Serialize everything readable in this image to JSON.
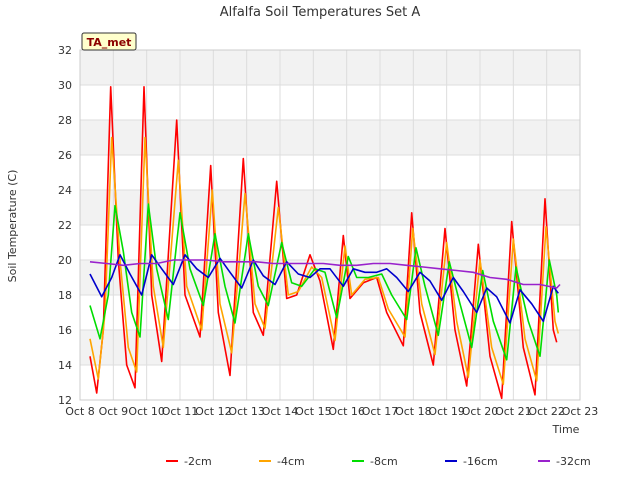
{
  "chart_data": {
    "type": "line",
    "title": "Alfalfa Soil Temperatures Set A",
    "xlabel": "Time",
    "ylabel": "Soil Temperature (C)",
    "badge": "TA_met",
    "ylim": [
      12,
      32
    ],
    "yticks": [
      12,
      14,
      16,
      18,
      20,
      22,
      24,
      26,
      28,
      30,
      32
    ],
    "xlim": [
      8,
      23
    ],
    "xticks": [
      {
        "day": 8,
        "label": "Oct 8"
      },
      {
        "day": 9,
        "label": "Oct 9"
      },
      {
        "day": 10,
        "label": "Oct 10"
      },
      {
        "day": 11,
        "label": "Oct 11"
      },
      {
        "day": 12,
        "label": "Oct 12"
      },
      {
        "day": 13,
        "label": "Oct 13"
      },
      {
        "day": 14,
        "label": "Oct 14"
      },
      {
        "day": 15,
        "label": "Oct 15"
      },
      {
        "day": 16,
        "label": "Oct 16"
      },
      {
        "day": 17,
        "label": "Oct 17"
      },
      {
        "day": 18,
        "label": "Oct 18"
      },
      {
        "day": 19,
        "label": "Oct 19"
      },
      {
        "day": 20,
        "label": "Oct 20"
      },
      {
        "day": 21,
        "label": "Oct 21"
      },
      {
        "day": 22,
        "label": "Oct 22"
      },
      {
        "day": 23,
        "label": "Oct 23"
      }
    ],
    "grid": true,
    "legend_position": "bottom",
    "series": [
      {
        "name": "-2cm",
        "color": "#ff0000",
        "points": [
          [
            8.3,
            14.5
          ],
          [
            8.5,
            12.4
          ],
          [
            8.7,
            16
          ],
          [
            8.92,
            29.9
          ],
          [
            9.15,
            20
          ],
          [
            9.4,
            14
          ],
          [
            9.65,
            12.7
          ],
          [
            9.92,
            29.9
          ],
          [
            10.15,
            18
          ],
          [
            10.45,
            14.2
          ],
          [
            10.9,
            28
          ],
          [
            11.15,
            18
          ],
          [
            11.6,
            15.6
          ],
          [
            11.92,
            25.4
          ],
          [
            12.15,
            17
          ],
          [
            12.5,
            13.4
          ],
          [
            12.9,
            25.8
          ],
          [
            13.2,
            17
          ],
          [
            13.5,
            15.7
          ],
          [
            13.9,
            24.5
          ],
          [
            14.2,
            17.8
          ],
          [
            14.5,
            18
          ],
          [
            14.9,
            20.3
          ],
          [
            15.2,
            18.8
          ],
          [
            15.6,
            14.9
          ],
          [
            15.9,
            21.4
          ],
          [
            16.1,
            17.8
          ],
          [
            16.5,
            18.7
          ],
          [
            16.9,
            19
          ],
          [
            17.2,
            17
          ],
          [
            17.7,
            15.1
          ],
          [
            17.95,
            22.7
          ],
          [
            18.2,
            17
          ],
          [
            18.6,
            14
          ],
          [
            18.95,
            21.8
          ],
          [
            19.25,
            16
          ],
          [
            19.6,
            12.8
          ],
          [
            19.95,
            20.9
          ],
          [
            20.3,
            14.5
          ],
          [
            20.65,
            12.1
          ],
          [
            20.95,
            22.2
          ],
          [
            21.3,
            15
          ],
          [
            21.65,
            12.3
          ],
          [
            21.95,
            23.5
          ],
          [
            22.2,
            16
          ],
          [
            22.3,
            15.3
          ]
        ]
      },
      {
        "name": "-4cm",
        "color": "#ffa500",
        "points": [
          [
            8.3,
            15.5
          ],
          [
            8.55,
            13.2
          ],
          [
            8.75,
            17
          ],
          [
            8.95,
            27
          ],
          [
            9.2,
            20
          ],
          [
            9.45,
            15
          ],
          [
            9.7,
            13.6
          ],
          [
            9.95,
            27
          ],
          [
            10.2,
            18.5
          ],
          [
            10.5,
            15
          ],
          [
            10.95,
            25.7
          ],
          [
            11.2,
            18.5
          ],
          [
            11.65,
            16
          ],
          [
            11.97,
            24
          ],
          [
            12.2,
            17.5
          ],
          [
            12.55,
            14.7
          ],
          [
            12.95,
            23.8
          ],
          [
            13.25,
            17.5
          ],
          [
            13.55,
            16.1
          ],
          [
            13.95,
            23
          ],
          [
            14.25,
            18
          ],
          [
            14.55,
            18.2
          ],
          [
            14.95,
            19.6
          ],
          [
            15.25,
            19
          ],
          [
            15.65,
            15.4
          ],
          [
            15.95,
            20.8
          ],
          [
            16.15,
            18
          ],
          [
            16.55,
            18.9
          ],
          [
            16.95,
            19
          ],
          [
            17.25,
            17.2
          ],
          [
            17.75,
            15.6
          ],
          [
            17.98,
            21.8
          ],
          [
            18.25,
            17.5
          ],
          [
            18.65,
            14.6
          ],
          [
            19.0,
            21
          ],
          [
            19.3,
            16.5
          ],
          [
            19.65,
            13.3
          ],
          [
            20.0,
            20
          ],
          [
            20.35,
            15
          ],
          [
            20.7,
            12.9
          ],
          [
            21.0,
            21.2
          ],
          [
            21.35,
            15.5
          ],
          [
            21.7,
            13.1
          ],
          [
            21.98,
            21.9
          ],
          [
            22.25,
            16.5
          ],
          [
            22.35,
            15.8
          ]
        ]
      },
      {
        "name": "-8cm",
        "color": "#00dd00",
        "points": [
          [
            8.3,
            17.4
          ],
          [
            8.6,
            15.5
          ],
          [
            8.85,
            18
          ],
          [
            9.05,
            23.1
          ],
          [
            9.3,
            20.5
          ],
          [
            9.55,
            17
          ],
          [
            9.8,
            15.6
          ],
          [
            10.05,
            23.2
          ],
          [
            10.3,
            19.5
          ],
          [
            10.65,
            16.6
          ],
          [
            11.0,
            22.7
          ],
          [
            11.3,
            19.5
          ],
          [
            11.7,
            17.4
          ],
          [
            12.05,
            21.5
          ],
          [
            12.35,
            18.5
          ],
          [
            12.65,
            16.4
          ],
          [
            13.05,
            21.5
          ],
          [
            13.35,
            18.5
          ],
          [
            13.65,
            17.4
          ],
          [
            14.05,
            21
          ],
          [
            14.35,
            18.7
          ],
          [
            14.65,
            18.5
          ],
          [
            15.05,
            19.5
          ],
          [
            15.35,
            19.3
          ],
          [
            15.7,
            16.7
          ],
          [
            16.05,
            20.2
          ],
          [
            16.3,
            19
          ],
          [
            16.65,
            19
          ],
          [
            17.05,
            19.2
          ],
          [
            17.35,
            18
          ],
          [
            17.8,
            16.6
          ],
          [
            18.08,
            20.7
          ],
          [
            18.35,
            18.5
          ],
          [
            18.75,
            15.7
          ],
          [
            19.08,
            19.9
          ],
          [
            19.4,
            17.5
          ],
          [
            19.75,
            15
          ],
          [
            20.08,
            19.4
          ],
          [
            20.4,
            16.5
          ],
          [
            20.8,
            14.3
          ],
          [
            21.08,
            19.6
          ],
          [
            21.45,
            16.5
          ],
          [
            21.8,
            14.5
          ],
          [
            22.08,
            20
          ],
          [
            22.3,
            18
          ],
          [
            22.35,
            17
          ]
        ]
      },
      {
        "name": "-16cm",
        "color": "#0000cc",
        "points": [
          [
            8.3,
            19.2
          ],
          [
            8.65,
            17.9
          ],
          [
            8.95,
            19
          ],
          [
            9.2,
            20.3
          ],
          [
            9.5,
            19.2
          ],
          [
            9.85,
            18
          ],
          [
            10.15,
            20.3
          ],
          [
            10.45,
            19.5
          ],
          [
            10.8,
            18.6
          ],
          [
            11.15,
            20.3
          ],
          [
            11.5,
            19.5
          ],
          [
            11.85,
            19
          ],
          [
            12.2,
            20.1
          ],
          [
            12.5,
            19.3
          ],
          [
            12.85,
            18.4
          ],
          [
            13.2,
            20
          ],
          [
            13.5,
            19.1
          ],
          [
            13.85,
            18.6
          ],
          [
            14.2,
            19.9
          ],
          [
            14.55,
            19.2
          ],
          [
            14.9,
            19
          ],
          [
            15.2,
            19.5
          ],
          [
            15.5,
            19.5
          ],
          [
            15.9,
            18.5
          ],
          [
            16.2,
            19.5
          ],
          [
            16.55,
            19.3
          ],
          [
            16.9,
            19.3
          ],
          [
            17.2,
            19.5
          ],
          [
            17.5,
            19
          ],
          [
            17.85,
            18.2
          ],
          [
            18.2,
            19.3
          ],
          [
            18.5,
            18.8
          ],
          [
            18.85,
            17.7
          ],
          [
            19.2,
            19
          ],
          [
            19.5,
            18.2
          ],
          [
            19.9,
            17
          ],
          [
            20.2,
            18.4
          ],
          [
            20.5,
            17.9
          ],
          [
            20.9,
            16.4
          ],
          [
            21.2,
            18.3
          ],
          [
            21.55,
            17.5
          ],
          [
            21.9,
            16.5
          ],
          [
            22.2,
            18.5
          ],
          [
            22.35,
            18.1
          ]
        ]
      },
      {
        "name": "-32cm",
        "color": "#9922cc",
        "points": [
          [
            8.3,
            19.9
          ],
          [
            8.8,
            19.8
          ],
          [
            9.3,
            19.7
          ],
          [
            9.8,
            19.8
          ],
          [
            10.3,
            19.8
          ],
          [
            10.8,
            20
          ],
          [
            11.3,
            20
          ],
          [
            11.8,
            20
          ],
          [
            12.3,
            19.9
          ],
          [
            12.8,
            19.9
          ],
          [
            13.3,
            19.9
          ],
          [
            13.8,
            19.8
          ],
          [
            14.3,
            19.8
          ],
          [
            14.8,
            19.8
          ],
          [
            15.3,
            19.8
          ],
          [
            15.8,
            19.7
          ],
          [
            16.3,
            19.7
          ],
          [
            16.8,
            19.8
          ],
          [
            17.3,
            19.8
          ],
          [
            17.8,
            19.7
          ],
          [
            18.3,
            19.6
          ],
          [
            18.8,
            19.5
          ],
          [
            19.3,
            19.4
          ],
          [
            19.8,
            19.3
          ],
          [
            20.3,
            19
          ],
          [
            20.8,
            18.9
          ],
          [
            21.3,
            18.6
          ],
          [
            21.8,
            18.6
          ],
          [
            22.3,
            18.4
          ],
          [
            22.4,
            18.6
          ]
        ]
      }
    ]
  }
}
